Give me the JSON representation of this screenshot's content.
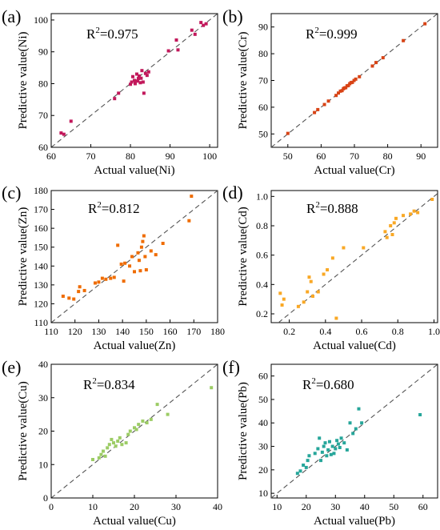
{
  "chart_data": [
    {
      "type": "scatter",
      "panel_label": "(a)",
      "xlabel": "Actual value(Ni)",
      "ylabel": "Predictive value(Ni)",
      "r2_label": "R",
      "r2_sup": "2",
      "r2_value": "=0.975",
      "xlim": [
        60,
        102
      ],
      "ylim": [
        60,
        102
      ],
      "xticks": [
        60,
        70,
        80,
        90,
        100
      ],
      "yticks": [
        60,
        70,
        80,
        90,
        100
      ],
      "color": "#c2185b",
      "reference_line": "y = x dashed",
      "points": [
        [
          62.5,
          64.5
        ],
        [
          63.2,
          64.1
        ],
        [
          65,
          68.2
        ],
        [
          76,
          75.3
        ],
        [
          77,
          77
        ],
        [
          80,
          79.8
        ],
        [
          80.3,
          80.5
        ],
        [
          80.6,
          82.2
        ],
        [
          81,
          81
        ],
        [
          81.2,
          80
        ],
        [
          81.6,
          83
        ],
        [
          81.8,
          80.8
        ],
        [
          82,
          81.6
        ],
        [
          82.2,
          82.4
        ],
        [
          82.5,
          80.3
        ],
        [
          82.7,
          81.7
        ],
        [
          82.9,
          84.1
        ],
        [
          83.2,
          80.5
        ],
        [
          83.4,
          77
        ],
        [
          83.8,
          83.2
        ],
        [
          84.2,
          82.6
        ],
        [
          84.6,
          83.7
        ],
        [
          89.6,
          90.3
        ],
        [
          91.6,
          93.7
        ],
        [
          92,
          90.6
        ],
        [
          95.5,
          96.8
        ],
        [
          96.3,
          95.5
        ],
        [
          97.8,
          99.2
        ],
        [
          98.4,
          98.3
        ],
        [
          99.1,
          98.8
        ]
      ]
    },
    {
      "type": "scatter",
      "panel_label": "(b)",
      "xlabel": "Actual value(Cr)",
      "ylabel": "Predictive value(Cr)",
      "r2_label": "R",
      "r2_sup": "2",
      "r2_value": "=0.999",
      "xlim": [
        45,
        95
      ],
      "ylim": [
        45,
        95
      ],
      "xticks": [
        50,
        60,
        70,
        80,
        90
      ],
      "yticks": [
        50,
        60,
        70,
        80,
        90
      ],
      "color": "#d84315",
      "reference_line": "y = x dashed",
      "points": [
        [
          50,
          50.2
        ],
        [
          58,
          58
        ],
        [
          59,
          59.1
        ],
        [
          61,
          61
        ],
        [
          62.2,
          62.3
        ],
        [
          64.5,
          64.4
        ],
        [
          65.2,
          65.3
        ],
        [
          65.8,
          66
        ],
        [
          66.3,
          66.2
        ],
        [
          66.7,
          66.9
        ],
        [
          67,
          67.2
        ],
        [
          67.4,
          67.3
        ],
        [
          67.8,
          68
        ],
        [
          68.2,
          68.1
        ],
        [
          68.6,
          68.8
        ],
        [
          69,
          69.2
        ],
        [
          69.4,
          69.3
        ],
        [
          69.9,
          70
        ],
        [
          70.4,
          70.5
        ],
        [
          71.5,
          71.4
        ],
        [
          75.4,
          75.4
        ],
        [
          76.5,
          76.7
        ],
        [
          78.6,
          78.5
        ],
        [
          84.7,
          84.9
        ],
        [
          91.2,
          91.2
        ]
      ]
    },
    {
      "type": "scatter",
      "panel_label": "(c)",
      "xlabel": "Actual value(Zn)",
      "ylabel": "Predictive value(Zn)",
      "r2_label": "R",
      "r2_sup": "2",
      "r2_value": "=0.812",
      "xlim": [
        110,
        180
      ],
      "ylim": [
        110,
        180
      ],
      "xticks": [
        110,
        120,
        130,
        140,
        150,
        160,
        170,
        180
      ],
      "yticks": [
        110,
        120,
        130,
        140,
        150,
        160,
        170,
        180
      ],
      "color": "#ef6c00",
      "reference_line": "y = x dashed",
      "points": [
        [
          115,
          124
        ],
        [
          117.5,
          123
        ],
        [
          119.5,
          122.5
        ],
        [
          121.5,
          126.5
        ],
        [
          122,
          129
        ],
        [
          124,
          127
        ],
        [
          128.5,
          131
        ],
        [
          130,
          131.5
        ],
        [
          131.5,
          133.5
        ],
        [
          133,
          133
        ],
        [
          135,
          133.5
        ],
        [
          136.5,
          134
        ],
        [
          138,
          151
        ],
        [
          139.5,
          141
        ],
        [
          140.5,
          132
        ],
        [
          141,
          141.5
        ],
        [
          143,
          140
        ],
        [
          144,
          145
        ],
        [
          145,
          137
        ],
        [
          146.5,
          147
        ],
        [
          147,
          143
        ],
        [
          147.5,
          137.5
        ],
        [
          148,
          150
        ],
        [
          148.5,
          153
        ],
        [
          149,
          156
        ],
        [
          149.5,
          145
        ],
        [
          150,
          138
        ],
        [
          152,
          148
        ],
        [
          154,
          146
        ],
        [
          157,
          152
        ],
        [
          168,
          164
        ],
        [
          169,
          177
        ]
      ]
    },
    {
      "type": "scatter",
      "panel_label": "(d)",
      "xlabel": "Actual value(Cd)",
      "ylabel": "Predictive value(Cd)",
      "r2_label": "R",
      "r2_sup": "2",
      "r2_value": "=0.888",
      "xlim": [
        0.1,
        1.02
      ],
      "ylim": [
        0.14,
        1.04
      ],
      "xticks": [
        0.2,
        0.4,
        0.6,
        0.8,
        1.0
      ],
      "yticks": [
        0.2,
        0.4,
        0.6,
        0.8,
        1.0
      ],
      "xtick_labels": [
        "0.2",
        "0.4",
        "0.6",
        "0.8",
        "1.0"
      ],
      "ytick_labels": [
        "0.2",
        "0.4",
        "0.6",
        "0.8",
        "1.0"
      ],
      "color": "#f9a825",
      "reference_line": "y = x dashed",
      "points": [
        [
          0.15,
          0.34
        ],
        [
          0.16,
          0.26
        ],
        [
          0.17,
          0.3
        ],
        [
          0.25,
          0.25
        ],
        [
          0.28,
          0.28
        ],
        [
          0.3,
          0.35
        ],
        [
          0.31,
          0.45
        ],
        [
          0.32,
          0.42
        ],
        [
          0.33,
          0.32
        ],
        [
          0.36,
          0.35
        ],
        [
          0.39,
          0.47
        ],
        [
          0.41,
          0.5
        ],
        [
          0.44,
          0.58
        ],
        [
          0.46,
          0.17
        ],
        [
          0.5,
          0.65
        ],
        [
          0.61,
          0.65
        ],
        [
          0.73,
          0.76
        ],
        [
          0.74,
          0.72
        ],
        [
          0.76,
          0.8
        ],
        [
          0.77,
          0.74
        ],
        [
          0.78,
          0.82
        ],
        [
          0.79,
          0.85
        ],
        [
          0.83,
          0.87
        ],
        [
          0.87,
          0.88
        ],
        [
          0.89,
          0.9
        ],
        [
          0.91,
          0.89
        ],
        [
          0.99,
          0.98
        ]
      ]
    },
    {
      "type": "scatter",
      "panel_label": "(e)",
      "xlabel": "Actual value(Cu)",
      "ylabel": "Predictive value(Cu)",
      "r2_label": "R",
      "r2_sup": "2",
      "r2_value": "=0.834",
      "xlim": [
        0,
        40
      ],
      "ylim": [
        0,
        40
      ],
      "xticks": [
        0,
        10,
        20,
        30,
        40
      ],
      "yticks": [
        0,
        10,
        20,
        30,
        40
      ],
      "color": "#9ccc65",
      "reference_line": "y = x dashed",
      "points": [
        [
          10,
          11.5
        ],
        [
          11.5,
          12
        ],
        [
          12,
          13
        ],
        [
          12.5,
          14
        ],
        [
          13,
          12.5
        ],
        [
          13.5,
          15
        ],
        [
          14,
          16
        ],
        [
          14.5,
          17.5
        ],
        [
          15,
          16.5
        ],
        [
          15.5,
          15.5
        ],
        [
          16,
          17
        ],
        [
          16.5,
          18
        ],
        [
          17,
          16
        ],
        [
          18,
          16.5
        ],
        [
          18.5,
          19
        ],
        [
          19,
          20
        ],
        [
          20,
          21
        ],
        [
          20.5,
          20.5
        ],
        [
          21,
          22
        ],
        [
          22,
          23
        ],
        [
          23,
          22.5
        ],
        [
          24,
          23.5
        ],
        [
          25.5,
          28
        ],
        [
          28,
          25
        ],
        [
          38.5,
          33
        ]
      ]
    },
    {
      "type": "scatter",
      "panel_label": "(f)",
      "xlabel": "Actual value(Pb)",
      "ylabel": "Predictive value(Pb)",
      "r2_label": "R",
      "r2_sup": "2",
      "r2_value": "=0.680",
      "xlim": [
        8,
        65
      ],
      "ylim": [
        8,
        65
      ],
      "xticks": [
        10,
        20,
        30,
        40,
        50,
        60
      ],
      "yticks": [
        10,
        20,
        30,
        40,
        50,
        60
      ],
      "color": "#26a69a",
      "reference_line": "y = x dashed",
      "points": [
        [
          17,
          18.5
        ],
        [
          18,
          19.5
        ],
        [
          19,
          22
        ],
        [
          20,
          21
        ],
        [
          20.5,
          24
        ],
        [
          21,
          26
        ],
        [
          23,
          27
        ],
        [
          24,
          29
        ],
        [
          24.5,
          33.5
        ],
        [
          25,
          24
        ],
        [
          25.5,
          27.5
        ],
        [
          26,
          30
        ],
        [
          26.5,
          31.5
        ],
        [
          27,
          26
        ],
        [
          27.5,
          28.5
        ],
        [
          28,
          32
        ],
        [
          28.5,
          26.5
        ],
        [
          29,
          30
        ],
        [
          29.5,
          27
        ],
        [
          30,
          29
        ],
        [
          30.5,
          32.5
        ],
        [
          31,
          31
        ],
        [
          31.5,
          29.5
        ],
        [
          32,
          33.5
        ],
        [
          33,
          31.5
        ],
        [
          34,
          28.5
        ],
        [
          35,
          40
        ],
        [
          36,
          35.5
        ],
        [
          37,
          37.5
        ],
        [
          38,
          46
        ],
        [
          39,
          40
        ],
        [
          59,
          43.5
        ]
      ]
    }
  ]
}
